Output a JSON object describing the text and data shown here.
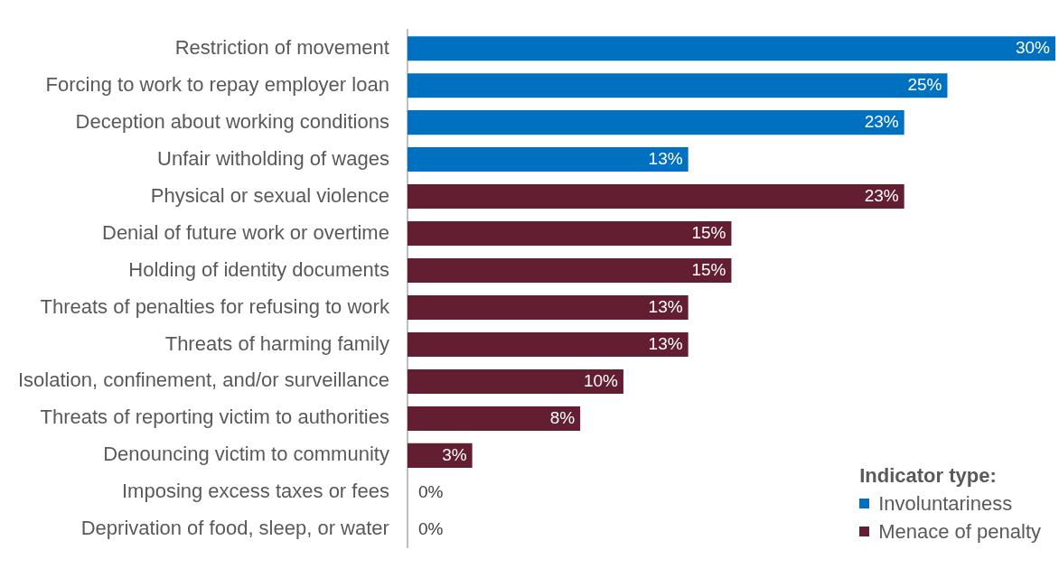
{
  "chart_data": {
    "type": "bar",
    "orientation": "horizontal",
    "stacked": true,
    "legend": "bottom right",
    "legend_title": "Indicator type:",
    "tick_labels": "y",
    "categories": [
      "Restriction of movement",
      "Forcing to work to repay employer loan",
      "Deception about working conditions",
      "Unfair witholding of wages",
      "Physical or sexual violence",
      "Denial of future work or overtime",
      "Holding of identity documents",
      "Threats of penalties for refusing to work",
      "Threats of harming family",
      "Isolation, confinement, and/or surveillance",
      "Threats of reporting victim to authorities",
      "Denouncing victim to community",
      "Imposing excess taxes or fees",
      "Deprivation of food, sleep, or water"
    ],
    "series": [
      {
        "name": "Involuntariness",
        "color": "#0070c0",
        "values": [
          30,
          25,
          23,
          13,
          null,
          null,
          null,
          null,
          null,
          null,
          null,
          null,
          null,
          null
        ],
        "value_labels": [
          "30%",
          "25%",
          "23%",
          "13%",
          null,
          null,
          null,
          null,
          null,
          null,
          null,
          null,
          null,
          null
        ]
      },
      {
        "name": "Menace of penalty",
        "color": "#641e32",
        "values": [
          null,
          null,
          null,
          null,
          23,
          15,
          15,
          13,
          13,
          10,
          8,
          3,
          0,
          0
        ],
        "value_labels": [
          null,
          null,
          null,
          null,
          "23%",
          "15%",
          "15%",
          "13%",
          "13%",
          "10%",
          "8%",
          "3%",
          "0%",
          "0%"
        ]
      }
    ]
  }
}
